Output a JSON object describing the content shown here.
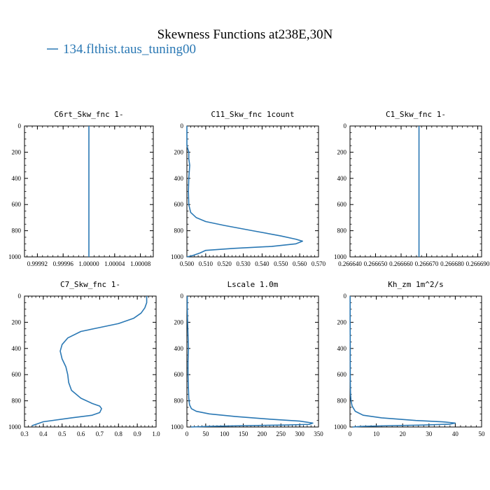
{
  "figure": {
    "title": "Skewness Functions at238E,30N",
    "legend": "134.flthist.taus_tuning00",
    "line_color": "#2a78b4"
  },
  "chart_data": [
    {
      "type": "line",
      "title": "C6rt_Skw_fnc   1-",
      "orientation": "vertical-profile",
      "xlim": [
        0.9999,
        1.0001
      ],
      "ylim": [
        1000,
        0
      ],
      "x_ticks": [
        "0.99992",
        "0.99996",
        "1.00000",
        "1.00004",
        "1.00008"
      ],
      "x_tick_values": [
        0.99992,
        0.99996,
        1.0,
        1.00004,
        1.00008
      ],
      "y_ticks": [
        "0",
        "200",
        "400",
        "600",
        "800",
        "1000"
      ],
      "series": [
        {
          "x": [
            1.0,
            1.0
          ],
          "y": [
            0,
            1000
          ]
        }
      ]
    },
    {
      "type": "line",
      "title": "C11_Skw_fnc   1count",
      "orientation": "vertical-profile",
      "xlim": [
        0.5,
        0.57
      ],
      "ylim": [
        1000,
        0
      ],
      "x_ticks": [
        "0.500",
        "0.510",
        "0.520",
        "0.530",
        "0.540",
        "0.550",
        "0.560",
        "0.570"
      ],
      "x_tick_values": [
        0.5,
        0.51,
        0.52,
        0.53,
        0.54,
        0.55,
        0.56,
        0.57
      ],
      "y_ticks": [
        "0",
        "200",
        "400",
        "600",
        "800",
        "1000"
      ],
      "series": [
        {
          "x": [
            0.5,
            0.5,
            0.501,
            0.501,
            0.5015,
            0.501,
            0.5008,
            0.501,
            0.502,
            0.505,
            0.51,
            0.52,
            0.535,
            0.55,
            0.558,
            0.5615,
            0.558,
            0.545,
            0.525,
            0.51,
            0.507,
            0.503,
            0.5
          ],
          "y": [
            0,
            150,
            200,
            250,
            300,
            400,
            500,
            600,
            660,
            700,
            730,
            760,
            800,
            840,
            865,
            880,
            900,
            920,
            935,
            950,
            970,
            990,
            1000
          ]
        }
      ]
    },
    {
      "type": "line",
      "title": "C1_Skw_fnc   1-",
      "orientation": "vertical-profile",
      "xlim": [
        0.26664,
        0.2666915
      ],
      "ylim": [
        1000,
        0
      ],
      "x_ticks": [
        "0.266640",
        "0.266650",
        "0.266660",
        "0.266670",
        "0.266680",
        "0.266690"
      ],
      "x_tick_values": [
        0.26664,
        0.26665,
        0.26666,
        0.26667,
        0.26668,
        0.26669
      ],
      "y_ticks": [
        "0",
        "200",
        "400",
        "600",
        "800",
        "1000"
      ],
      "series": [
        {
          "x": [
            0.266667,
            0.266667
          ],
          "y": [
            0,
            1000
          ]
        }
      ]
    },
    {
      "type": "line",
      "title": "C7_Skw_fnc   1-",
      "orientation": "vertical-profile",
      "xlim": [
        0.3,
        1.0
      ],
      "ylim": [
        1000,
        0
      ],
      "x_ticks": [
        "0.3",
        "0.4",
        "0.5",
        "0.6",
        "0.7",
        "0.8",
        "0.9",
        "1.0"
      ],
      "x_tick_values": [
        0.3,
        0.4,
        0.5,
        0.6,
        0.7,
        0.8,
        0.9,
        1.0
      ],
      "y_ticks": [
        "0",
        "200",
        "400",
        "600",
        "800",
        "1000"
      ],
      "series": [
        {
          "x": [
            0.95,
            0.95,
            0.94,
            0.92,
            0.88,
            0.8,
            0.7,
            0.6,
            0.53,
            0.5,
            0.49,
            0.5,
            0.52,
            0.53,
            0.535,
            0.55,
            0.6,
            0.66,
            0.7,
            0.71,
            0.7,
            0.66,
            0.55,
            0.4,
            0.34
          ],
          "y": [
            0,
            50,
            90,
            130,
            170,
            210,
            240,
            270,
            320,
            370,
            420,
            480,
            540,
            600,
            660,
            720,
            780,
            820,
            840,
            860,
            890,
            910,
            930,
            960,
            990
          ]
        }
      ]
    },
    {
      "type": "line",
      "title": "Lscale   1.0m",
      "orientation": "vertical-profile",
      "xlim": [
        0,
        350
      ],
      "ylim": [
        1000,
        0
      ],
      "x_ticks": [
        "0",
        "50",
        "100",
        "150",
        "200",
        "250",
        "300",
        "350"
      ],
      "x_tick_values": [
        0,
        50,
        100,
        150,
        200,
        250,
        300,
        350
      ],
      "y_ticks": [
        "0",
        "200",
        "400",
        "600",
        "800",
        "1000"
      ],
      "series": [
        {
          "x": [
            1,
            1,
            2,
            3,
            4,
            3,
            3,
            4,
            5,
            7,
            12,
            25,
            60,
            130,
            220,
            300,
            335,
            325,
            260,
            150,
            60,
            10
          ],
          "y": [
            0,
            100,
            200,
            300,
            400,
            500,
            600,
            700,
            780,
            830,
            860,
            880,
            900,
            920,
            940,
            955,
            970,
            980,
            985,
            990,
            995,
            1000
          ]
        }
      ]
    },
    {
      "type": "line",
      "title": "Kh_zm   1m^2/s",
      "orientation": "vertical-profile",
      "xlim": [
        0,
        50
      ],
      "ylim": [
        1000,
        0
      ],
      "x_ticks": [
        "0",
        "10",
        "20",
        "30",
        "40",
        "50"
      ],
      "x_tick_values": [
        0,
        10,
        20,
        30,
        40,
        50
      ],
      "y_ticks": [
        "0",
        "200",
        "400",
        "600",
        "800",
        "1000"
      ],
      "series": [
        {
          "x": [
            0.05,
            0.05,
            0.1,
            0.1,
            0.15,
            0.2,
            0.4,
            0.8,
            2,
            5,
            12,
            25,
            35,
            40,
            38,
            28,
            15,
            5,
            1
          ],
          "y": [
            0,
            200,
            400,
            600,
            700,
            750,
            800,
            840,
            880,
            910,
            930,
            950,
            960,
            970,
            978,
            985,
            990,
            995,
            1000
          ]
        }
      ]
    }
  ]
}
